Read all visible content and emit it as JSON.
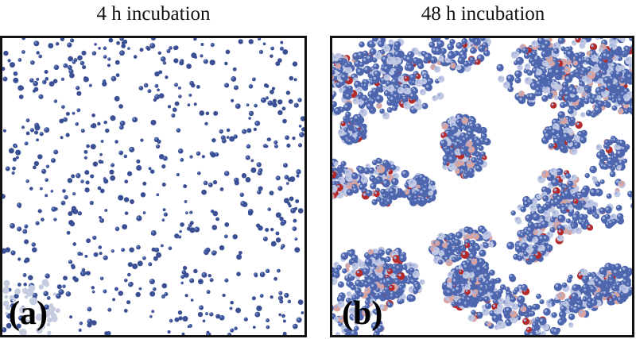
{
  "panels": [
    {
      "title": "4 h incubation",
      "label": "(a)",
      "particle_state": "dispersed",
      "particle_color": "#3a4f94",
      "highlight_color": "#6f87c4"
    },
    {
      "title": "48 h incubation",
      "label": "(b)",
      "particle_state": "aggregated clusters",
      "particle_color": "#4e66ad",
      "highlight_color": "#9fb0dc",
      "accent_colors": [
        "#b52a2a",
        "#d9a4a0",
        "#c0c8e4"
      ]
    }
  ]
}
